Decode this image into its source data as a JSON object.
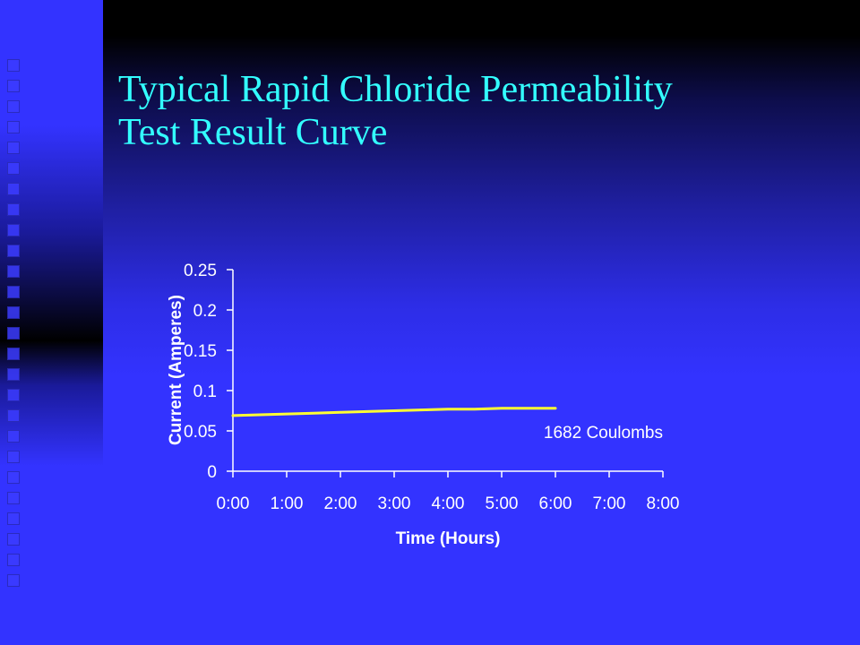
{
  "slide": {
    "title_line1": "Typical Rapid Chloride Permeability",
    "title_line2": "Test Result Curve"
  },
  "colors": {
    "background": "#3333ff",
    "title": "#33ffff",
    "curve": "#ffff33",
    "axis": "#ffffff"
  },
  "chart_data": {
    "type": "line",
    "title": "",
    "xlabel": "Time (Hours)",
    "ylabel": "Current (Amperes)",
    "x_ticks": [
      "0:00",
      "1:00",
      "2:00",
      "3:00",
      "4:00",
      "5:00",
      "6:00",
      "7:00",
      "8:00"
    ],
    "y_ticks": [
      "0",
      "0.05",
      "0.1",
      "0.15",
      "0.2",
      "0.25"
    ],
    "xlim": [
      0,
      8
    ],
    "ylim": [
      0,
      0.25
    ],
    "grid": false,
    "legend": "none",
    "series": [
      {
        "x": [
          0,
          0.5,
          1,
          1.5,
          2,
          2.5,
          3,
          3.5,
          4,
          4.5,
          5,
          5.5,
          6
        ],
        "y": [
          0.069,
          0.07,
          0.071,
          0.072,
          0.073,
          0.074,
          0.075,
          0.076,
          0.077,
          0.077,
          0.078,
          0.078,
          0.078
        ]
      }
    ],
    "annotation": "1682 Coulombs"
  }
}
